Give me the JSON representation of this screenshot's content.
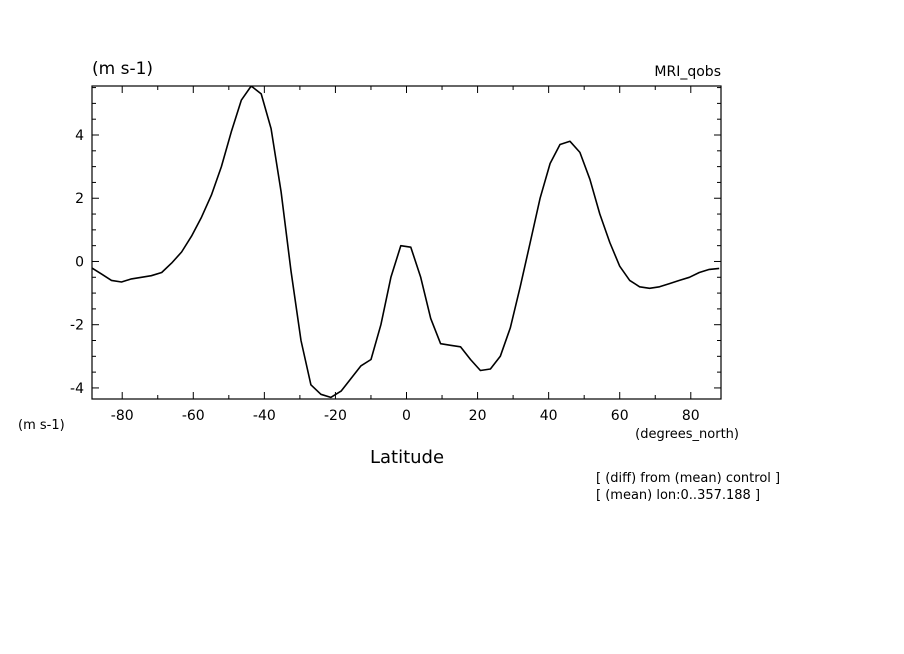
{
  "chart_data": {
    "type": "line",
    "title": "(m s-1)",
    "subtitle": "MRI_qobs",
    "ylabel": "(m s-1)",
    "xlabel": "Latitude",
    "xunit": "(degrees_north)",
    "xlim": [
      -88.5,
      88.5
    ],
    "ylim": [
      -4.35,
      5.55
    ],
    "xticks": [
      -80,
      -60,
      -40,
      -20,
      0,
      20,
      40,
      60,
      80
    ],
    "xtick_labels": [
      "-80",
      "-60",
      "-40",
      "-20",
      "0",
      "20",
      "40",
      "60",
      "80"
    ],
    "yticks": [
      -4,
      -2,
      0,
      2,
      4
    ],
    "ytick_labels": [
      "-4",
      "-2",
      "0",
      "2",
      "4"
    ],
    "grid": false,
    "annotations": [
      "[ (diff) from (mean) control ]",
      "[ (mean) lon:0..357.188 ]"
    ],
    "series": [
      {
        "color": "#000000",
        "x": [
          -88.6,
          -85.8,
          -83.0,
          -80.2,
          -77.4,
          -74.6,
          -71.8,
          -68.9,
          -66.1,
          -63.3,
          -60.5,
          -57.7,
          -54.9,
          -52.1,
          -49.3,
          -46.5,
          -43.7,
          -40.9,
          -38.1,
          -35.3,
          -32.5,
          -29.7,
          -26.9,
          -24.1,
          -21.3,
          -18.4,
          -15.6,
          -12.8,
          -10.0,
          -7.2,
          -4.4,
          -1.6,
          1.2,
          4.0,
          6.8,
          9.6,
          12.4,
          15.2,
          18.0,
          20.8,
          23.6,
          26.4,
          29.2,
          32.0,
          34.8,
          37.6,
          40.4,
          43.2,
          46.0,
          48.8,
          51.6,
          54.4,
          57.2,
          60.0,
          62.8,
          65.6,
          68.4,
          71.2,
          74.0,
          76.8,
          79.6,
          82.4,
          85.2,
          88.0
        ],
        "y": [
          -0.2,
          -0.4,
          -0.6,
          -0.65,
          -0.55,
          -0.5,
          -0.45,
          -0.35,
          -0.05,
          0.3,
          0.8,
          1.4,
          2.1,
          3.0,
          4.1,
          5.1,
          5.55,
          5.3,
          4.2,
          2.2,
          -0.3,
          -2.5,
          -3.9,
          -4.2,
          -4.3,
          -4.1,
          -3.7,
          -3.3,
          -3.1,
          -2.0,
          -0.5,
          0.5,
          0.45,
          -0.5,
          -1.8,
          -2.6,
          -2.65,
          -2.7,
          -3.1,
          -3.45,
          -3.4,
          -3.0,
          -2.1,
          -0.8,
          0.6,
          2.0,
          3.1,
          3.7,
          3.8,
          3.45,
          2.6,
          1.5,
          0.6,
          -0.15,
          -0.6,
          -0.8,
          -0.85,
          -0.8,
          -0.7,
          -0.6,
          -0.5,
          -0.35,
          -0.25,
          -0.22
        ]
      }
    ]
  }
}
